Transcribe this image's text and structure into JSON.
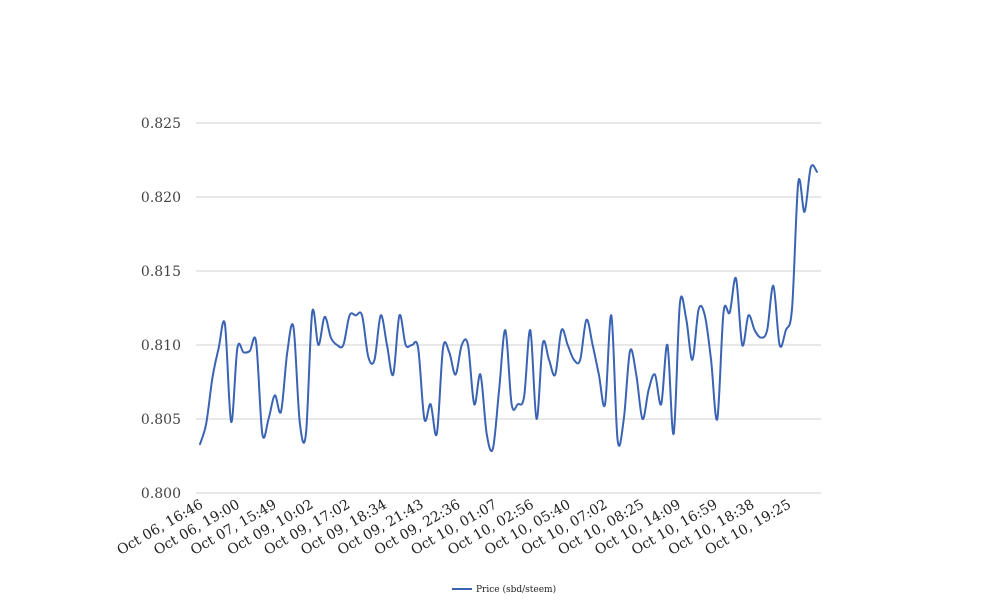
{
  "chart_data": {
    "type": "line",
    "title": "",
    "xlabel": "",
    "ylabel": "",
    "ylim": [
      0.8,
      0.825
    ],
    "yticks": [
      "0.800",
      "0.805",
      "0.810",
      "0.815",
      "0.820",
      "0.825"
    ],
    "grid": true,
    "legend_position": "bottom-center",
    "x_tick_labels": [
      "Oct 06, 16:46",
      "Oct 06, 19:00",
      "Oct 07, 15:49",
      "Oct 09, 10:02",
      "Oct 09, 17:02",
      "Oct 09, 18:34",
      "Oct 09, 21:43",
      "Oct 09, 22:36",
      "Oct 10, 01:07",
      "Oct 10, 02:56",
      "Oct 10, 05:40",
      "Oct 10, 07:02",
      "Oct 10, 08:25",
      "Oct 10, 14:09",
      "Oct 10, 16:59",
      "Oct 10, 18:38",
      "Oct 10, 19:25"
    ],
    "series": [
      {
        "name": "Price (sbd/steem)",
        "color": "#3a63b4",
        "values": [
          0.8033,
          0.8047,
          0.8078,
          0.8098,
          0.8114,
          0.8048,
          0.8098,
          0.8095,
          0.8096,
          0.8102,
          0.804,
          0.805,
          0.8066,
          0.8055,
          0.8095,
          0.8112,
          0.8048,
          0.804,
          0.8122,
          0.81,
          0.8119,
          0.8105,
          0.81,
          0.81,
          0.812,
          0.812,
          0.812,
          0.8092,
          0.809,
          0.812,
          0.81,
          0.808,
          0.812,
          0.81,
          0.81,
          0.8098,
          0.805,
          0.806,
          0.804,
          0.8098,
          0.8095,
          0.808,
          0.81,
          0.81,
          0.806,
          0.808,
          0.804,
          0.803,
          0.807,
          0.811,
          0.806,
          0.806,
          0.8065,
          0.811,
          0.805,
          0.8101,
          0.809,
          0.808,
          0.811,
          0.81,
          0.809,
          0.809,
          0.8117,
          0.81,
          0.808,
          0.806,
          0.812,
          0.8036,
          0.805,
          0.8096,
          0.808,
          0.805,
          0.807,
          0.808,
          0.806,
          0.81,
          0.804,
          0.8128,
          0.8118,
          0.809,
          0.8124,
          0.812,
          0.809,
          0.805,
          0.8122,
          0.8122,
          0.8145,
          0.81,
          0.812,
          0.811,
          0.8105,
          0.811,
          0.814,
          0.81,
          0.811,
          0.8125,
          0.821,
          0.819,
          0.822,
          0.8217
        ]
      }
    ]
  }
}
